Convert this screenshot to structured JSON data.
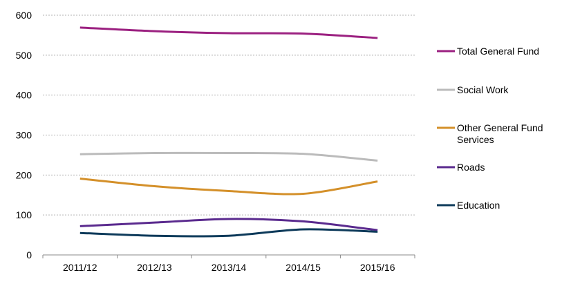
{
  "chart_data": {
    "type": "line",
    "title": "",
    "xlabel": "",
    "ylabel": "",
    "categories": [
      "2011/12",
      "2012/13",
      "2013/14",
      "2014/15",
      "2015/16"
    ],
    "ylim": [
      0,
      600
    ],
    "yticks": [
      0,
      100,
      200,
      300,
      400,
      500,
      600
    ],
    "grid": true,
    "legend_placement": "right",
    "series": [
      {
        "name": "Total General Fund",
        "color": "#9b2080",
        "values": [
          569,
          560,
          555,
          554,
          543
        ]
      },
      {
        "name": "Social Work",
        "color": "#bbbbbb",
        "values": [
          252,
          255,
          255,
          253,
          236
        ]
      },
      {
        "name": "Other General Fund Services",
        "legend_lines": [
          "Other General Fund",
          "Services"
        ],
        "color": "#d4902a",
        "values": [
          191,
          172,
          160,
          153,
          184
        ]
      },
      {
        "name": "Roads",
        "color": "#5a2a8e",
        "values": [
          72,
          81,
          90,
          84,
          62
        ]
      },
      {
        "name": "Education",
        "color": "#0d3a5a",
        "values": [
          55,
          48,
          48,
          64,
          58
        ]
      }
    ]
  }
}
